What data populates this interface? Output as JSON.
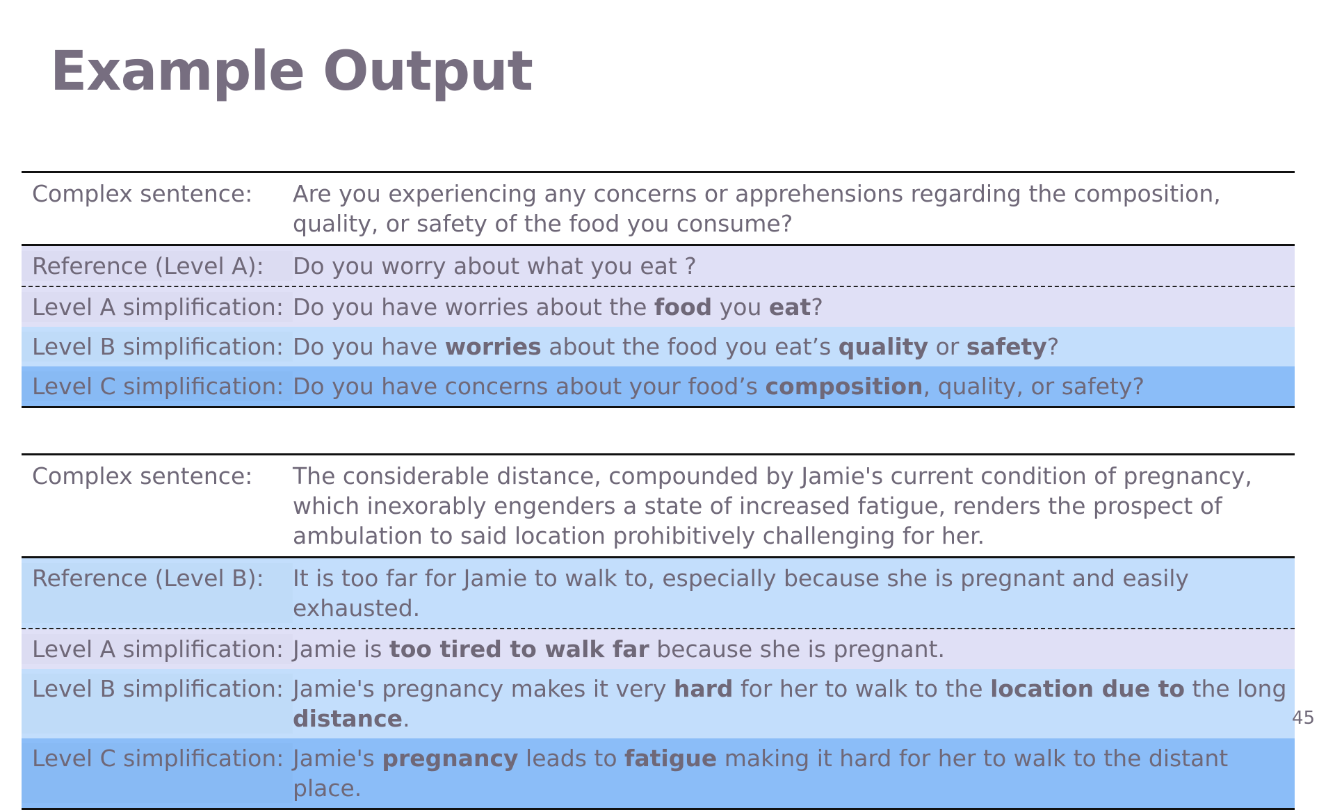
{
  "title": "Example Output",
  "page_number": "45",
  "colors": {
    "lavender": "#e0e0f6",
    "light_blue": "#c3defc",
    "medium_blue": "#8bbdf8",
    "text": "#6f6878"
  },
  "tables": [
    {
      "rows": [
        {
          "label": "Complex sentence:",
          "style": "complex",
          "segments": [
            {
              "t": "Are you experiencing any concerns or apprehensions regarding the composition, quality, or safety of the food you consume?"
            }
          ]
        },
        {
          "label": "Reference (Level A):",
          "style": "lav",
          "dash": true,
          "segments": [
            {
              "t": "Do you worry about what you eat ?"
            }
          ]
        },
        {
          "label": "Level A simplification:",
          "style": "lav",
          "segments": [
            {
              "t": "Do you have worries about the "
            },
            {
              "t": "food",
              "b": true
            },
            {
              "t": " you "
            },
            {
              "t": "eat",
              "b": true
            },
            {
              "t": "?"
            }
          ]
        },
        {
          "label": "Level B simplification:",
          "style": "lb",
          "segments": [
            {
              "t": "Do you have "
            },
            {
              "t": "worries",
              "b": true
            },
            {
              "t": " about the food you eat’s "
            },
            {
              "t": "quality",
              "b": true
            },
            {
              "t": " or "
            },
            {
              "t": "safety",
              "b": true
            },
            {
              "t": "?"
            }
          ]
        },
        {
          "label": "Level C simplification:",
          "style": "mb",
          "segments": [
            {
              "t": "Do you have concerns about your food’s "
            },
            {
              "t": "composition",
              "b": true
            },
            {
              "t": ", quality, or safety?"
            }
          ]
        }
      ]
    },
    {
      "rows": [
        {
          "label": "Complex sentence:",
          "style": "complex",
          "segments": [
            {
              "t": "The considerable distance, compounded by Jamie's current condition of pregnancy, which inexorably engenders a state of increased fatigue, renders the prospect of ambulation to said location prohibitively challenging for her."
            }
          ]
        },
        {
          "label": "Reference (Level B):",
          "style": "lb",
          "dash": true,
          "segments": [
            {
              "t": "It is too far for Jamie to walk to, especially because she is pregnant and easily exhausted."
            }
          ]
        },
        {
          "label": "Level A simplification:",
          "style": "lav",
          "segments": [
            {
              "t": "Jamie is "
            },
            {
              "t": "too tired to walk far",
              "b": true
            },
            {
              "t": " because she is pregnant."
            }
          ]
        },
        {
          "label": "Level B simplification:",
          "style": "lb",
          "segments": [
            {
              "t": "Jamie's pregnancy makes it very "
            },
            {
              "t": "hard",
              "b": true
            },
            {
              "t": " for her to walk to the "
            },
            {
              "t": "location due to",
              "b": true
            },
            {
              "t": " the long "
            },
            {
              "t": "distance",
              "b": true
            },
            {
              "t": "."
            }
          ]
        },
        {
          "label": "Level C simplification:",
          "style": "mb",
          "segments": [
            {
              "t": "Jamie's "
            },
            {
              "t": "pregnancy",
              "b": true
            },
            {
              "t": " leads to "
            },
            {
              "t": "fatigue",
              "b": true
            },
            {
              "t": " making it hard for her to walk to the distant place."
            }
          ]
        }
      ]
    }
  ]
}
